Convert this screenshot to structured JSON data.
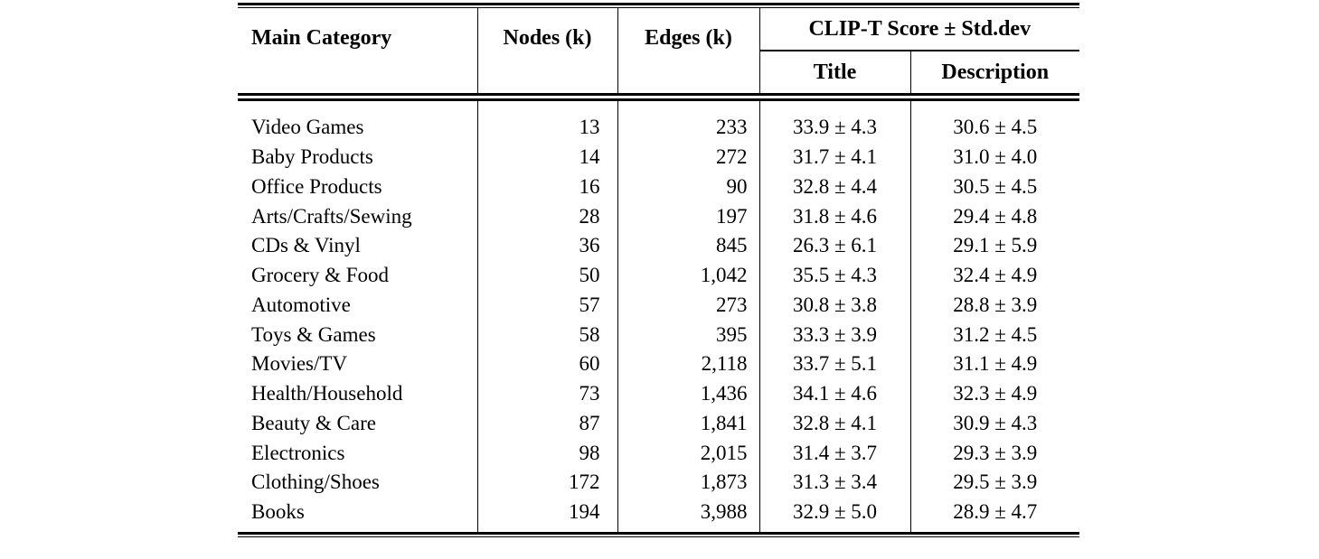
{
  "page": {
    "background": "#ffffff",
    "text_color": "#000000"
  },
  "table": {
    "headers": {
      "main_category": "Main Category",
      "nodes": "Nodes (k)",
      "edges": "Edges (k)",
      "clip_t_group": "CLIP-T Score ± Std.dev",
      "title": "Title",
      "description": "Description"
    },
    "rows": [
      {
        "category": "Video Games",
        "nodes": "13",
        "edges": "233",
        "title": "33.9 ± 4.3",
        "description": "30.6 ± 4.5"
      },
      {
        "category": "Baby Products",
        "nodes": "14",
        "edges": "272",
        "title": "31.7 ± 4.1",
        "description": "31.0 ± 4.0"
      },
      {
        "category": "Office Products",
        "nodes": "16",
        "edges": "90",
        "title": "32.8 ± 4.4",
        "description": "30.5 ± 4.5"
      },
      {
        "category": "Arts/Crafts/Sewing",
        "nodes": "28",
        "edges": "197",
        "title": "31.8 ± 4.6",
        "description": "29.4 ± 4.8"
      },
      {
        "category": "CDs & Vinyl",
        "nodes": "36",
        "edges": "845",
        "title": "26.3 ± 6.1",
        "description": "29.1 ± 5.9"
      },
      {
        "category": "Grocery & Food",
        "nodes": "50",
        "edges": "1,042",
        "title": "35.5 ± 4.3",
        "description": "32.4 ± 4.9"
      },
      {
        "category": "Automotive",
        "nodes": "57",
        "edges": "273",
        "title": "30.8 ± 3.8",
        "description": "28.8 ± 3.9"
      },
      {
        "category": "Toys & Games",
        "nodes": "58",
        "edges": "395",
        "title": "33.3 ± 3.9",
        "description": "31.2 ± 4.5"
      },
      {
        "category": "Movies/TV",
        "nodes": "60",
        "edges": "2,118",
        "title": "33.7 ± 5.1",
        "description": "31.1 ± 4.9"
      },
      {
        "category": "Health/Household",
        "nodes": "73",
        "edges": "1,436",
        "title": "34.1 ± 4.6",
        "description": "32.3 ± 4.9"
      },
      {
        "category": "Beauty & Care",
        "nodes": "87",
        "edges": "1,841",
        "title": "32.8 ± 4.1",
        "description": "30.9 ± 4.3"
      },
      {
        "category": "Electronics",
        "nodes": "98",
        "edges": "2,015",
        "title": "31.4 ± 3.7",
        "description": "29.3 ± 3.9"
      },
      {
        "category": "Clothing/Shoes",
        "nodes": "172",
        "edges": "1,873",
        "title": "31.3 ± 3.4",
        "description": "29.5 ± 3.9"
      },
      {
        "category": "Books",
        "nodes": "194",
        "edges": "3,988",
        "title": "32.9 ± 5.0",
        "description": "28.9 ± 4.7"
      }
    ]
  }
}
